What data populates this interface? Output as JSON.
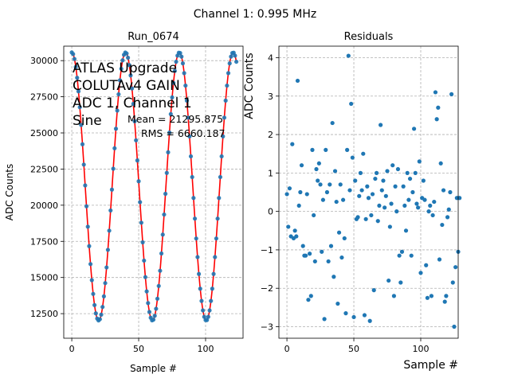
{
  "figure": {
    "suptitle": "Channel 1: 0.995 MHz"
  },
  "chart_data": [
    {
      "type": "scatter",
      "title": "Run_0674",
      "xlabel": "Sample #",
      "ylabel": "ADC Counts",
      "xlim": [
        -6,
        128
      ],
      "ylim": [
        10800,
        31000
      ],
      "xticks": [
        0,
        50,
        100
      ],
      "yticks": [
        12500,
        15000,
        17500,
        20000,
        22500,
        25000,
        27500,
        30000
      ],
      "grid": true,
      "annotations": {
        "label_lines": [
          "ATLAS Upgrade",
          "COLUTAv4 GAIN",
          "ADC 1, Channel 1",
          "Sine"
        ],
        "mean": "Mean = 21295.875",
        "rms": "RMS = 6660.187"
      },
      "sine_model": {
        "mean": 21295.875,
        "amplitude": 9270,
        "period_samples": 40.2,
        "peak_sample": 0
      },
      "x_range": [
        0,
        123
      ],
      "colors": {
        "points": "#1f77b4",
        "fit": "#ff0000",
        "grid": "#b0b0b0"
      }
    },
    {
      "type": "scatter",
      "title": "Residuals",
      "xlabel": "Sample #",
      "ylabel": "ADC Counts",
      "xlim": [
        -6,
        128
      ],
      "ylim": [
        -3.3,
        4.3
      ],
      "xticks": [
        0,
        50,
        100
      ],
      "yticks": [
        -3,
        -2,
        -1,
        0,
        1,
        2,
        3,
        4
      ],
      "grid": true,
      "y": [
        0.45,
        -0.4,
        0.6,
        -0.65,
        1.75,
        -0.7,
        -0.5,
        -0.65,
        3.4,
        0.15,
        0.5,
        1.2,
        -0.9,
        -1.15,
        -1.15,
        0.45,
        -2.3,
        -1.1,
        -2.2,
        1.6,
        -0.1,
        -1.3,
        1.1,
        0.8,
        1.25,
        0.7,
        -1.05,
        0.3,
        -2.8,
        1.6,
        0.5,
        -1.3,
        0.7,
        -0.9,
        2.3,
        -1.7,
        1.05,
        0.25,
        -2.4,
        -0.55,
        0.7,
        -1.2,
        0.3,
        -0.7,
        -2.65,
        1.6,
        4.05,
        0.55,
        2.8,
        1.4,
        -2.75,
        0.8,
        -0.2,
        -0.15,
        0.4,
        1.0,
        0.55,
        1.5,
        -2.7,
        -0.2,
        0.65,
        0.35,
        -2.85,
        -0.1,
        0.45,
        -2.05,
        0.85,
        1.0,
        -0.25,
        0.15,
        2.25,
        0.55,
        0.8,
        0.1,
        0.4,
        1.05,
        -1.8,
        -0.4,
        0.2,
        1.2,
        -2.2,
        0.65,
        0.0,
        1.1,
        -1.15,
        -1.85,
        -1.05,
        0.65,
        0.15,
        -0.5,
        1.0,
        0.3,
        0.85,
        -1.15,
        0.5,
        2.15,
        1.0,
        0.2,
        0.1,
        1.3,
        -1.6,
        0.35,
        0.8,
        0.3,
        -1.4,
        -2.25,
        0.0,
        0.15,
        -2.2,
        -0.1,
        0.25,
        3.1,
        2.4,
        2.7,
        -1.25,
        1.25,
        -0.35,
        0.55,
        -2.35,
        -2.2,
        -0.15,
        0.05,
        0.5,
        3.05,
        -1.85,
        -3.0,
        -1.45,
        0.35,
        -1.05,
        0.35
      ],
      "colors": {
        "points": "#1f77b4",
        "grid": "#b0b0b0"
      }
    }
  ]
}
